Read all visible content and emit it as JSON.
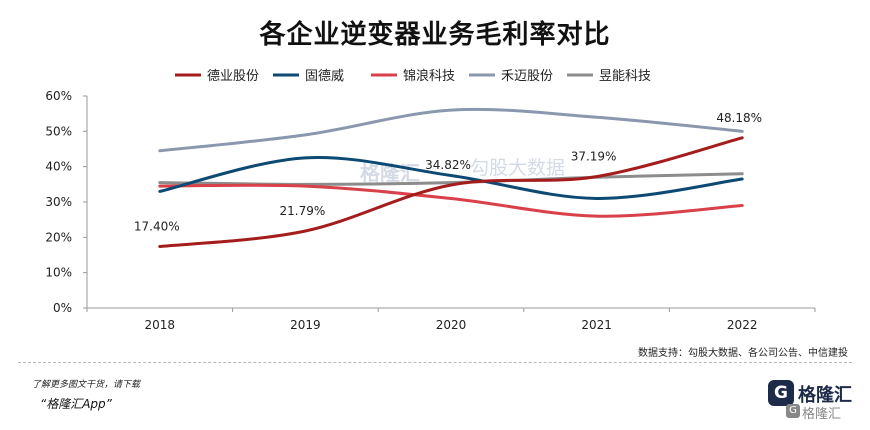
{
  "title": "各企业逆变器业务毛利率对比",
  "source": "数据支持：勾股大数据、各公司公告、中信建投",
  "promo": {
    "line1": "了解更多图文干货，请下载",
    "line2": "“格隆汇App”"
  },
  "logo": {
    "mark": "G",
    "name": "格隆汇",
    "mark_small": "G",
    "name_small": "格隆汇"
  },
  "watermark": {
    "brand": "格隆汇",
    "data_brand": "勾股大数据"
  },
  "chart_data": {
    "type": "line",
    "categories": [
      "2018",
      "2019",
      "2020",
      "2021",
      "2022"
    ],
    "yticks": [
      "0%",
      "10%",
      "20%",
      "30%",
      "40%",
      "50%",
      "60%"
    ],
    "ylim": [
      0,
      60
    ],
    "legend_position": "top",
    "grid": false,
    "series": [
      {
        "name": "德业股份",
        "color": "#a51c1c",
        "values": [
          17.4,
          21.79,
          34.82,
          37.19,
          48.18
        ],
        "labels": [
          "17.40%",
          "21.79%",
          "34.82%",
          "37.19%",
          "48.18%"
        ]
      },
      {
        "name": "固德威",
        "color": "#0d4a73",
        "values": [
          33.0,
          42.5,
          37.5,
          31.0,
          36.5
        ]
      },
      {
        "name": "锦浪科技",
        "color": "#d9414a",
        "values": [
          34.5,
          34.5,
          31.0,
          26.0,
          29.0
        ]
      },
      {
        "name": "禾迈股份",
        "color": "#8a97ad",
        "values": [
          44.5,
          49.0,
          56.0,
          54.0,
          50.0
        ]
      },
      {
        "name": "昱能科技",
        "color": "#8c8c8c",
        "values": [
          35.5,
          35.0,
          35.5,
          37.0,
          38.0
        ]
      }
    ]
  }
}
